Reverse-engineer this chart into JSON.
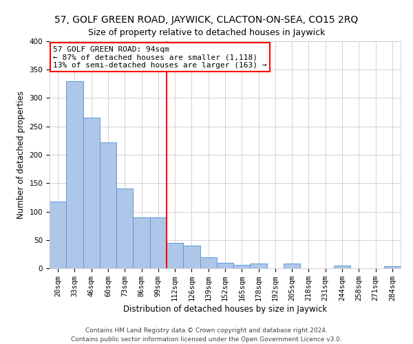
{
  "title": "57, GOLF GREEN ROAD, JAYWICK, CLACTON-ON-SEA, CO15 2RQ",
  "subtitle": "Size of property relative to detached houses in Jaywick",
  "xlabel": "Distribution of detached houses by size in Jaywick",
  "ylabel": "Number of detached properties",
  "bar_labels": [
    "20sqm",
    "33sqm",
    "46sqm",
    "60sqm",
    "73sqm",
    "86sqm",
    "99sqm",
    "112sqm",
    "126sqm",
    "139sqm",
    "152sqm",
    "165sqm",
    "178sqm",
    "192sqm",
    "205sqm",
    "218sqm",
    "231sqm",
    "244sqm",
    "258sqm",
    "271sqm",
    "284sqm"
  ],
  "bar_values": [
    118,
    330,
    265,
    222,
    141,
    90,
    90,
    45,
    40,
    20,
    10,
    6,
    8,
    0,
    8,
    0,
    0,
    5,
    0,
    0,
    4
  ],
  "bar_color": "#aec6e8",
  "bar_edge_color": "#5b9bd5",
  "vline_x": 6.5,
  "vline_color": "red",
  "annotation_title": "57 GOLF GREEN ROAD: 94sqm",
  "annotation_line1": "← 87% of detached houses are smaller (1,118)",
  "annotation_line2": "13% of semi-detached houses are larger (163) →",
  "annotation_box_color": "white",
  "annotation_box_edge_color": "red",
  "ylim": [
    0,
    400
  ],
  "yticks": [
    0,
    50,
    100,
    150,
    200,
    250,
    300,
    350,
    400
  ],
  "footer1": "Contains HM Land Registry data © Crown copyright and database right 2024.",
  "footer2": "Contains public sector information licensed under the Open Government Licence v3.0.",
  "title_fontsize": 10,
  "subtitle_fontsize": 9,
  "axis_label_fontsize": 8.5,
  "tick_fontsize": 7.5,
  "annotation_fontsize": 8,
  "footer_fontsize": 6.5
}
